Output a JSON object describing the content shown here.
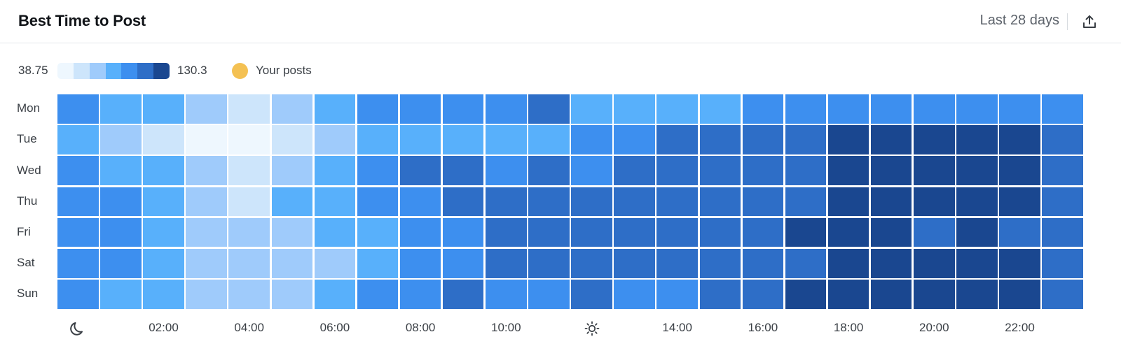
{
  "header": {
    "title": "Best Time to Post",
    "range_label": "Last 28 days",
    "export_icon": "export-icon"
  },
  "legend": {
    "min_label": "38.75",
    "max_label": "130.3",
    "scale_colors": [
      "#eef7fe",
      "#cde5fb",
      "#9fcbfb",
      "#58b0fb",
      "#3d8fef",
      "#2e6ec7",
      "#1a4790"
    ],
    "posts_label": "Your posts",
    "posts_color": "#f4c153"
  },
  "chart_data": {
    "type": "heatmap",
    "title": "Best Time to Post",
    "y_categories": [
      "Mon",
      "Tue",
      "Wed",
      "Thu",
      "Fri",
      "Sat",
      "Sun"
    ],
    "x_categories": [
      "00:00",
      "01:00",
      "02:00",
      "03:00",
      "04:00",
      "05:00",
      "06:00",
      "07:00",
      "08:00",
      "09:00",
      "10:00",
      "11:00",
      "12:00",
      "13:00",
      "14:00",
      "15:00",
      "16:00",
      "17:00",
      "18:00",
      "19:00",
      "20:00",
      "21:00",
      "22:00",
      "23:00"
    ],
    "x_tick_labels": [
      {
        "hour": 0,
        "icon": "moon-icon"
      },
      {
        "hour": 2,
        "label": "02:00"
      },
      {
        "hour": 4,
        "label": "04:00"
      },
      {
        "hour": 6,
        "label": "06:00"
      },
      {
        "hour": 8,
        "label": "08:00"
      },
      {
        "hour": 10,
        "label": "10:00"
      },
      {
        "hour": 12,
        "icon": "sun-icon"
      },
      {
        "hour": 14,
        "label": "14:00"
      },
      {
        "hour": 16,
        "label": "16:00"
      },
      {
        "hour": 18,
        "label": "18:00"
      },
      {
        "hour": 20,
        "label": "20:00"
      },
      {
        "hour": 22,
        "label": "22:00"
      }
    ],
    "value_range": [
      38.75,
      130.3
    ],
    "levels": [
      [
        4,
        3,
        3,
        2,
        1,
        2,
        3,
        4,
        4,
        4,
        4,
        5,
        3,
        3,
        3,
        3,
        4,
        4,
        4,
        4,
        4,
        4,
        4,
        4
      ],
      [
        3,
        2,
        1,
        0,
        0,
        1,
        2,
        3,
        3,
        3,
        3,
        3,
        4,
        4,
        5,
        5,
        5,
        5,
        6,
        6,
        6,
        6,
        6,
        5
      ],
      [
        4,
        3,
        3,
        2,
        1,
        2,
        3,
        4,
        5,
        5,
        4,
        5,
        4,
        5,
        5,
        5,
        5,
        5,
        6,
        6,
        6,
        6,
        6,
        5
      ],
      [
        4,
        4,
        3,
        2,
        1,
        3,
        3,
        4,
        4,
        5,
        5,
        5,
        5,
        5,
        5,
        5,
        5,
        5,
        6,
        6,
        6,
        6,
        6,
        5
      ],
      [
        4,
        4,
        3,
        2,
        2,
        2,
        3,
        3,
        4,
        4,
        5,
        5,
        5,
        5,
        5,
        5,
        5,
        6,
        6,
        6,
        5,
        6,
        5,
        5
      ],
      [
        4,
        4,
        3,
        2,
        2,
        2,
        2,
        3,
        4,
        4,
        5,
        5,
        5,
        5,
        5,
        5,
        5,
        5,
        6,
        6,
        6,
        6,
        6,
        5
      ],
      [
        4,
        3,
        3,
        2,
        2,
        2,
        3,
        4,
        4,
        5,
        4,
        4,
        5,
        4,
        4,
        5,
        5,
        6,
        6,
        6,
        6,
        6,
        6,
        5
      ]
    ]
  }
}
